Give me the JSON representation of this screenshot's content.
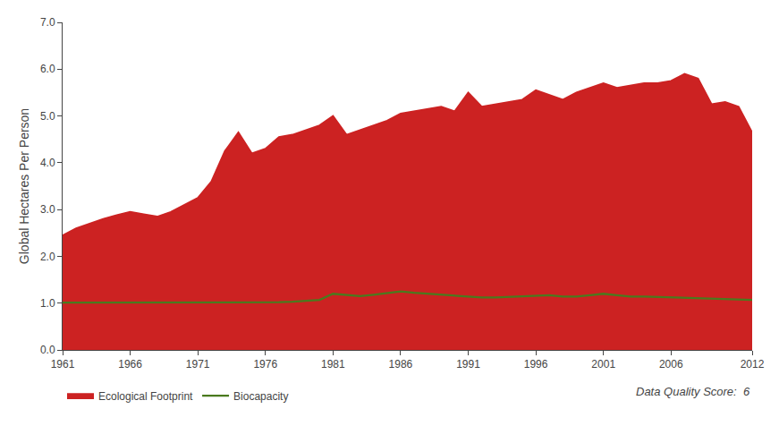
{
  "chart_data": {
    "type": "area",
    "x": [
      1961,
      1962,
      1963,
      1964,
      1965,
      1966,
      1967,
      1968,
      1969,
      1970,
      1971,
      1972,
      1973,
      1974,
      1975,
      1976,
      1977,
      1978,
      1979,
      1980,
      1981,
      1982,
      1983,
      1984,
      1985,
      1986,
      1987,
      1988,
      1989,
      1990,
      1991,
      1992,
      1993,
      1994,
      1995,
      1996,
      1997,
      1998,
      1999,
      2000,
      2001,
      2002,
      2003,
      2004,
      2005,
      2006,
      2007,
      2008,
      2009,
      2010,
      2011,
      2012
    ],
    "series": [
      {
        "name": "Ecological Footprint",
        "type": "area",
        "color": "#cc2222",
        "values": [
          2.45,
          2.6,
          2.7,
          2.8,
          2.88,
          2.95,
          2.9,
          2.85,
          2.95,
          3.1,
          3.25,
          3.6,
          4.25,
          4.65,
          4.2,
          4.3,
          4.55,
          4.6,
          4.7,
          4.8,
          5.0,
          4.6,
          4.7,
          4.8,
          4.9,
          5.05,
          5.1,
          5.15,
          5.2,
          5.1,
          5.5,
          5.2,
          5.25,
          5.3,
          5.35,
          5.55,
          5.45,
          5.35,
          5.5,
          5.6,
          5.7,
          5.6,
          5.65,
          5.7,
          5.7,
          5.75,
          5.9,
          5.8,
          5.25,
          5.3,
          5.2,
          4.65
        ]
      },
      {
        "name": "Biocapacity",
        "type": "line",
        "color": "#4a7a1e",
        "values": [
          1.01,
          1.01,
          1.01,
          1.01,
          1.01,
          1.01,
          1.01,
          1.01,
          1.01,
          1.01,
          1.01,
          1.01,
          1.01,
          1.01,
          1.01,
          1.01,
          1.02,
          1.03,
          1.05,
          1.07,
          1.2,
          1.18,
          1.15,
          1.18,
          1.22,
          1.25,
          1.22,
          1.2,
          1.18,
          1.15,
          1.13,
          1.12,
          1.12,
          1.13,
          1.14,
          1.15,
          1.17,
          1.14,
          1.14,
          1.17,
          1.2,
          1.17,
          1.14,
          1.14,
          1.13,
          1.12,
          1.11,
          1.1,
          1.09,
          1.09,
          1.08,
          1.07
        ]
      }
    ],
    "ylabel": "Global Hectares Per Person",
    "xlim": [
      1961,
      2012
    ],
    "xticks": [
      1961,
      1966,
      1971,
      1976,
      1981,
      1986,
      1991,
      1996,
      2001,
      2006,
      2012
    ],
    "ylim": [
      0.0,
      7.0
    ],
    "yticks": [
      {
        "value": 0.0,
        "label": "0.0"
      },
      {
        "value": 1.0,
        "label": "1.0"
      },
      {
        "value": 2.0,
        "label": "2.0"
      },
      {
        "value": 3.0,
        "label": "3.0"
      },
      {
        "value": 4.0,
        "label": "4.0"
      },
      {
        "value": 5.0,
        "label": "5.0"
      },
      {
        "value": 6.0,
        "label": "6.0"
      },
      {
        "value": 7.0,
        "label": "7.0"
      }
    ],
    "grid": false,
    "legend": "bottom-left",
    "annotations": [
      {
        "text": "Data Quality Score:  6"
      }
    ]
  }
}
